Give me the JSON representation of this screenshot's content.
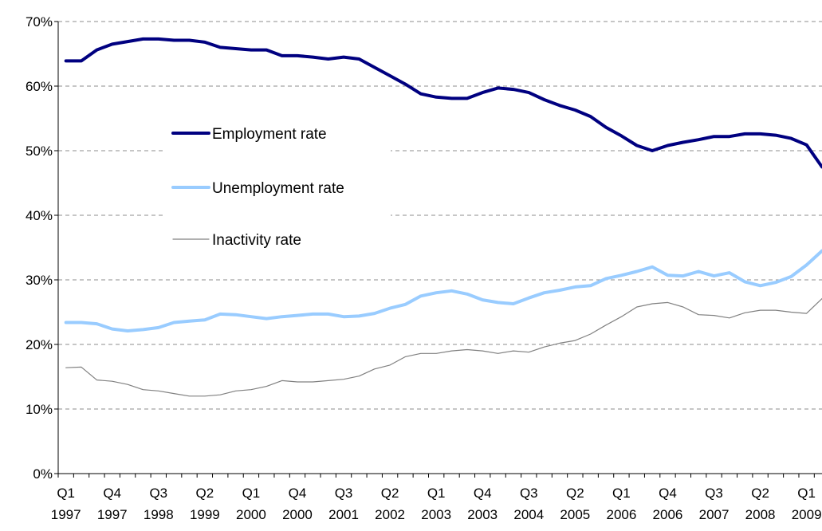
{
  "chart_data": {
    "type": "line",
    "title": "",
    "xlabel": "",
    "ylabel": "",
    "ylim": [
      0,
      70
    ],
    "y_ticks": [
      0,
      10,
      20,
      30,
      40,
      50,
      60,
      70
    ],
    "y_tick_labels": [
      "0%",
      "10%",
      "20%",
      "30%",
      "40%",
      "50%",
      "60%",
      "70%"
    ],
    "y_unit": "%",
    "grid": "horizontal dashed",
    "legend_position": "upper-left inside plot",
    "x": [
      "Q1 1997",
      "Q2 1997",
      "Q3 1997",
      "Q4 1997",
      "Q1 1998",
      "Q2 1998",
      "Q3 1998",
      "Q4 1998",
      "Q1 1999",
      "Q2 1999",
      "Q3 1999",
      "Q4 1999",
      "Q1 2000",
      "Q2 2000",
      "Q3 2000",
      "Q4 2000",
      "Q1 2001",
      "Q2 2001",
      "Q3 2001",
      "Q4 2001",
      "Q1 2002",
      "Q2 2002",
      "Q3 2002",
      "Q4 2002",
      "Q1 2003",
      "Q2 2003",
      "Q3 2003",
      "Q4 2003",
      "Q1 2004",
      "Q2 2004",
      "Q3 2004",
      "Q4 2004",
      "Q1 2005",
      "Q2 2005",
      "Q3 2005",
      "Q4 2005",
      "Q1 2006",
      "Q2 2006",
      "Q3 2006",
      "Q4 2006",
      "Q1 2007",
      "Q2 2007",
      "Q3 2007",
      "Q4 2007",
      "Q1 2008",
      "Q2 2008",
      "Q3 2008",
      "Q4 2008",
      "Q1 2009",
      "Q2 2009"
    ],
    "x_tick_labels": [
      {
        "index": 0,
        "q": "Q1",
        "year": "1997"
      },
      {
        "index": 3,
        "q": "Q4",
        "year": "1997"
      },
      {
        "index": 6,
        "q": "Q3",
        "year": "1998"
      },
      {
        "index": 9,
        "q": "Q2",
        "year": "1999"
      },
      {
        "index": 12,
        "q": "Q1",
        "year": "2000"
      },
      {
        "index": 15,
        "q": "Q4",
        "year": "2000"
      },
      {
        "index": 18,
        "q": "Q3",
        "year": "2001"
      },
      {
        "index": 21,
        "q": "Q2",
        "year": "2002"
      },
      {
        "index": 24,
        "q": "Q1",
        "year": "2003"
      },
      {
        "index": 27,
        "q": "Q4",
        "year": "2003"
      },
      {
        "index": 30,
        "q": "Q3",
        "year": "2004"
      },
      {
        "index": 33,
        "q": "Q2",
        "year": "2005"
      },
      {
        "index": 36,
        "q": "Q1",
        "year": "2006"
      },
      {
        "index": 39,
        "q": "Q4",
        "year": "2006"
      },
      {
        "index": 42,
        "q": "Q3",
        "year": "2007"
      },
      {
        "index": 45,
        "q": "Q2",
        "year": "2008"
      },
      {
        "index": 48,
        "q": "Q1",
        "year": "2009"
      }
    ],
    "series": [
      {
        "name": "Employment rate",
        "color": "#000080",
        "values": [
          63.9,
          63.9,
          65.6,
          66.5,
          66.9,
          67.3,
          67.3,
          67.1,
          67.1,
          66.8,
          66.0,
          65.8,
          65.6,
          65.6,
          64.7,
          64.7,
          64.5,
          64.2,
          64.5,
          64.2,
          62.9,
          61.6,
          60.3,
          58.8,
          58.3,
          58.1,
          58.1,
          59.0,
          59.7,
          59.5,
          59.0,
          57.9,
          57.0,
          56.3,
          55.3,
          53.6,
          52.3,
          50.8,
          50.0,
          50.8,
          51.3,
          51.7,
          52.2,
          52.2,
          52.6,
          52.6,
          52.4,
          51.9,
          50.9,
          47.5
        ]
      },
      {
        "name": "Unemployment rate",
        "color": "#99CCFF",
        "values": [
          23.4,
          23.4,
          23.2,
          22.4,
          22.1,
          22.3,
          22.6,
          23.4,
          23.6,
          23.8,
          24.7,
          24.6,
          24.3,
          24.0,
          24.3,
          24.5,
          24.7,
          24.7,
          24.3,
          24.4,
          24.8,
          25.6,
          26.2,
          27.5,
          28.0,
          28.3,
          27.8,
          26.9,
          26.5,
          26.3,
          27.2,
          28.0,
          28.4,
          28.9,
          29.1,
          30.2,
          30.7,
          31.3,
          32.0,
          30.7,
          30.6,
          31.3,
          30.6,
          31.1,
          29.7,
          29.1,
          29.6,
          30.5,
          32.3,
          34.5
        ]
      },
      {
        "name": "Inactivity rate",
        "color": "#808080",
        "values": [
          16.4,
          16.5,
          14.5,
          14.3,
          13.8,
          13.0,
          12.8,
          12.4,
          12.0,
          12.0,
          12.2,
          12.8,
          13.0,
          13.5,
          14.4,
          14.2,
          14.2,
          14.4,
          14.6,
          15.1,
          16.2,
          16.8,
          18.1,
          18.6,
          18.6,
          19.0,
          19.2,
          19.0,
          18.6,
          19.0,
          18.8,
          19.6,
          20.2,
          20.6,
          21.6,
          23.0,
          24.3,
          25.8,
          26.3,
          26.5,
          25.8,
          24.6,
          24.5,
          24.1,
          24.9,
          25.3,
          25.3,
          25.0,
          24.8,
          27.1
        ]
      }
    ]
  }
}
